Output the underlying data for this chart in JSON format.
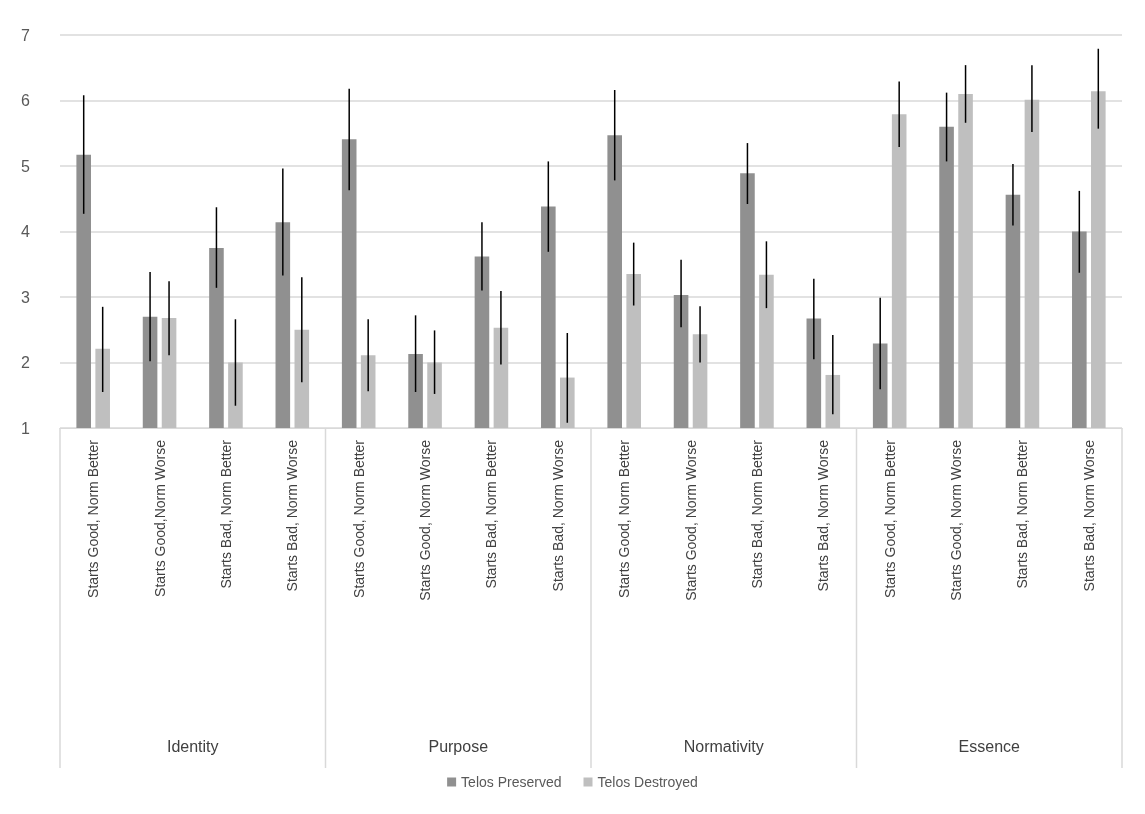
{
  "chart_data": {
    "type": "bar",
    "categories": [
      "Starts Good, Norm Better",
      "Starts Good,Norm Worse",
      "Starts Bad, Norm Better",
      "Starts Bad, Norm Worse",
      "Starts Good, Norm Better",
      "Starts Good, Norm Worse",
      "Starts Bad, Norm Better",
      "Starts Bad, Norm Worse",
      "Starts Good, Norm Better",
      "Starts Good, Norm Worse",
      "Starts Bad, Norm Better",
      "Starts Bad, Norm Worse",
      "Starts Good, Norm Better",
      "Starts Good, Norm Worse",
      "Starts Bad, Norm Better",
      "Starts Bad, Norm Worse"
    ],
    "annotations": [
      "Identity",
      "Purpose",
      "Normativity",
      "Essence"
    ],
    "series": [
      {
        "name": "Telos Preserved",
        "color": "#909090",
        "values": [
          5.17,
          2.7,
          3.75,
          4.14,
          5.41,
          2.13,
          3.62,
          4.38,
          5.47,
          3.03,
          4.89,
          2.67,
          2.29,
          5.6,
          4.56,
          4.0
        ],
        "errors": [
          [
            4.27,
            6.08
          ],
          [
            2.02,
            3.38
          ],
          [
            3.14,
            4.37
          ],
          [
            3.33,
            4.96
          ],
          [
            4.63,
            6.18
          ],
          [
            1.55,
            2.72
          ],
          [
            3.1,
            4.14
          ],
          [
            3.69,
            5.07
          ],
          [
            4.78,
            6.16
          ],
          [
            2.54,
            3.57
          ],
          [
            4.42,
            5.35
          ],
          [
            2.05,
            3.28
          ],
          [
            1.59,
            2.99
          ],
          [
            5.07,
            6.12
          ],
          [
            4.09,
            5.03
          ],
          [
            3.37,
            4.62
          ]
        ]
      },
      {
        "name": "Telos Destroyed",
        "color": "#bfbfbf",
        "values": [
          2.21,
          2.68,
          2.0,
          2.5,
          2.11,
          2.0,
          2.53,
          1.77,
          3.35,
          2.43,
          3.34,
          1.81,
          5.79,
          6.1,
          6.01,
          6.14
        ],
        "errors": [
          [
            1.55,
            2.85
          ],
          [
            2.11,
            3.24
          ],
          [
            1.34,
            2.66
          ],
          [
            1.7,
            3.3
          ],
          [
            1.56,
            2.66
          ],
          [
            1.52,
            2.49
          ],
          [
            1.97,
            3.09
          ],
          [
            1.08,
            2.45
          ],
          [
            2.87,
            3.83
          ],
          [
            2.0,
            2.86
          ],
          [
            2.83,
            3.85
          ],
          [
            1.21,
            2.42
          ],
          [
            5.29,
            6.29
          ],
          [
            5.66,
            6.54
          ],
          [
            5.52,
            6.54
          ],
          [
            5.57,
            6.79
          ]
        ]
      }
    ],
    "ylim": [
      1,
      7
    ],
    "yticks": [
      1,
      2,
      3,
      4,
      5,
      6,
      7
    ],
    "grid": "y",
    "legend": "bottom"
  }
}
